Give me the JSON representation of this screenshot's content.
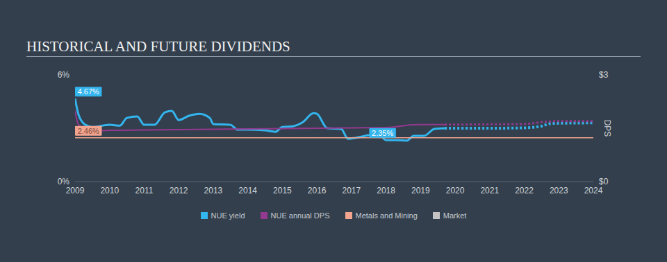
{
  "chart_data": {
    "type": "line",
    "title": "HISTORICAL AND FUTURE DIVIDENDS",
    "y2_label": "DPS",
    "xlim": [
      2009,
      2024
    ],
    "xticks": [
      2009,
      2010,
      2011,
      2012,
      2013,
      2014,
      2015,
      2016,
      2017,
      2018,
      2019,
      2020,
      2021,
      2022,
      2023,
      2024
    ],
    "ylim": [
      0,
      6
    ],
    "yticks": [
      {
        "value": 0,
        "label": "0%"
      },
      {
        "value": 6,
        "label": "6%"
      }
    ],
    "y2lim": [
      0,
      3
    ],
    "y2ticks": [
      {
        "value": 0,
        "label": "$0"
      },
      {
        "value": 3,
        "label": "$3"
      }
    ],
    "grid": false,
    "legend": "bottom",
    "series": [
      {
        "name": "NUE yield",
        "color": "#33b5ee",
        "axis": "y",
        "x": [
          2009.0,
          2009.1,
          2009.3,
          2009.5,
          2010.0,
          2010.3,
          2010.5,
          2010.8,
          2011.0,
          2011.3,
          2011.6,
          2011.8,
          2012.0,
          2012.3,
          2012.6,
          2012.9,
          2013.0,
          2013.5,
          2013.7,
          2014.0,
          2014.5,
          2014.8,
          2015.0,
          2015.3,
          2015.6,
          2015.9,
          2016.0,
          2016.3,
          2016.7,
          2016.9,
          2017.2,
          2017.5,
          2017.8,
          2018.0,
          2018.3,
          2018.6,
          2018.8,
          2019.1,
          2019.4,
          2019.7
        ],
        "values": [
          4.67,
          3.77,
          3.19,
          3.07,
          3.19,
          3.15,
          3.58,
          3.66,
          3.19,
          3.19,
          3.89,
          3.97,
          3.46,
          3.7,
          3.81,
          3.58,
          3.23,
          3.19,
          2.92,
          2.92,
          2.88,
          2.8,
          3.07,
          3.11,
          3.35,
          3.85,
          3.81,
          3.0,
          2.96,
          2.41,
          2.49,
          2.61,
          2.65,
          2.33,
          2.33,
          2.3,
          2.57,
          2.57,
          2.96,
          3.0
        ],
        "forecast": {
          "line_style": "dotted",
          "x": [
            2019.7,
            2021.0,
            2022.0,
            2022.5,
            2022.8,
            2024.0
          ],
          "values": [
            3.0,
            3.0,
            3.02,
            3.12,
            3.27,
            3.3
          ]
        },
        "annotations": [
          {
            "x": 2009,
            "y": 4.67,
            "label": "4.67%"
          },
          {
            "x": 2017.9,
            "y": 2.35,
            "label": "2.35%"
          }
        ]
      },
      {
        "name": "NUE annual DPS",
        "color": "#93398f",
        "axis": "y2",
        "x": [
          2009.0,
          2009.1,
          2009.5,
          2010.0,
          2011.0,
          2012.0,
          2013.0,
          2014.0,
          2015.0,
          2016.0,
          2017.0,
          2018.0,
          2018.9,
          2019.7
        ],
        "values": [
          1.99,
          1.6,
          1.42,
          1.44,
          1.45,
          1.46,
          1.47,
          1.48,
          1.49,
          1.5,
          1.51,
          1.52,
          1.6,
          1.6
        ],
        "forecast": {
          "line_style": "dotted",
          "x": [
            2019.7,
            2021.0,
            2022.0,
            2022.6,
            2023.0,
            2024.0
          ],
          "values": [
            1.6,
            1.61,
            1.62,
            1.68,
            1.7,
            1.7
          ]
        }
      },
      {
        "name": "Metals and Mining",
        "color": "#f2a48e",
        "axis": "y",
        "x": [
          2009,
          2024
        ],
        "values": [
          2.46,
          2.46
        ],
        "annotations": [
          {
            "x": 2009,
            "y": 2.46,
            "label": "2.46%"
          }
        ]
      },
      {
        "name": "Market",
        "color": "#c4c4c4",
        "axis": "y",
        "x": [],
        "values": []
      }
    ]
  }
}
